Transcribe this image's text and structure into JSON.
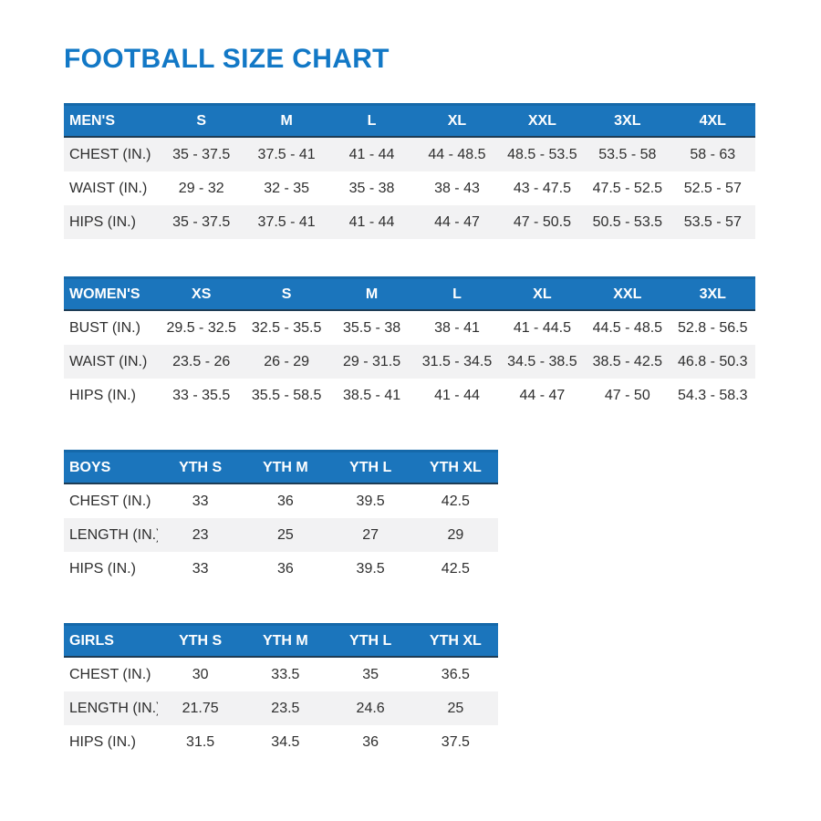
{
  "page": {
    "title": "FOOTBALL SIZE CHART"
  },
  "colors": {
    "title_blue": "#1278c6",
    "accent_blue": "#1b75bc",
    "header_top_border": "#1568a9",
    "header_bottom_border": "#1d3c55",
    "header_text": "#ffffff",
    "row_shade": "#f2f2f3",
    "body_text": "#2e2e2e"
  },
  "chart_data": [
    {
      "type": "table",
      "id": "mens",
      "columns": [
        "MEN'S",
        "S",
        "M",
        "L",
        "XL",
        "XXL",
        "3XL",
        "4XL"
      ],
      "rows": [
        [
          "CHEST (IN.)",
          "35 - 37.5",
          "37.5 - 41",
          "41 - 44",
          "44 - 48.5",
          "48.5 - 53.5",
          "53.5 - 58",
          "58 - 63"
        ],
        [
          "WAIST (IN.)",
          "29 - 32",
          "32 - 35",
          "35 - 38",
          "38 - 43",
          "43 - 47.5",
          "47.5 - 52.5",
          "52.5 - 57"
        ],
        [
          "HIPS (IN.)",
          "35 - 37.5",
          "37.5 - 41",
          "41 - 44",
          "44 - 47",
          "47 - 50.5",
          "50.5 - 53.5",
          "53.5 - 57"
        ]
      ],
      "shaded_rows": [
        0,
        2
      ]
    },
    {
      "type": "table",
      "id": "womens",
      "columns": [
        "WOMEN'S",
        "XS",
        "S",
        "M",
        "L",
        "XL",
        "XXL",
        "3XL"
      ],
      "rows": [
        [
          "BUST (IN.)",
          "29.5 - 32.5",
          "32.5 - 35.5",
          "35.5 - 38",
          "38 - 41",
          "41 - 44.5",
          "44.5 - 48.5",
          "52.8 - 56.5"
        ],
        [
          "WAIST (IN.)",
          "23.5 - 26",
          "26 - 29",
          "29 - 31.5",
          "31.5 - 34.5",
          "34.5 - 38.5",
          "38.5 - 42.5",
          "46.8 - 50.3"
        ],
        [
          "HIPS (IN.)",
          "33 - 35.5",
          "35.5 - 58.5",
          "38.5 - 41",
          "41 - 44",
          "44 - 47",
          "47 - 50",
          "54.3 - 58.3"
        ]
      ],
      "shaded_rows": [
        1
      ]
    },
    {
      "type": "table",
      "id": "boys",
      "columns": [
        "BOYS",
        "YTH S",
        "YTH M",
        "YTH L",
        "YTH XL"
      ],
      "rows": [
        [
          "CHEST (IN.)",
          "33",
          "36",
          "39.5",
          "42.5"
        ],
        [
          "LENGTH (IN.)",
          "23",
          "25",
          "27",
          "29"
        ],
        [
          "HIPS (IN.)",
          "33",
          "36",
          "39.5",
          "42.5"
        ]
      ],
      "shaded_rows": [
        1
      ]
    },
    {
      "type": "table",
      "id": "girls",
      "columns": [
        "GIRLS",
        "YTH S",
        "YTH M",
        "YTH L",
        "YTH XL"
      ],
      "rows": [
        [
          "CHEST (IN.)",
          "30",
          "33.5",
          "35",
          "36.5"
        ],
        [
          "LENGTH (IN.)",
          "21.75",
          "23.5",
          "24.6",
          "25"
        ],
        [
          "HIPS (IN.)",
          "31.5",
          "34.5",
          "36",
          "37.5"
        ]
      ],
      "shaded_rows": [
        1
      ]
    }
  ]
}
